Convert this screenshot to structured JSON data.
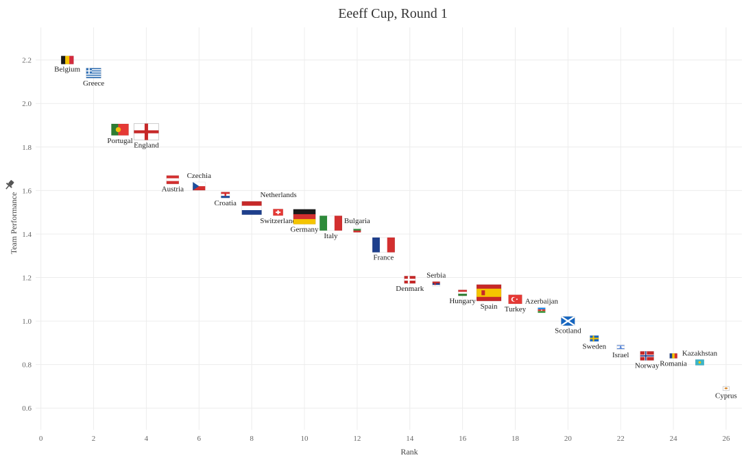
{
  "chart_data": {
    "type": "scatter",
    "title": "Eeeff Cup, Round 1",
    "xlabel": "Rank",
    "ylabel": "Team Performance",
    "xlim": [
      -0.2,
      26.6
    ],
    "ylim": [
      0.5,
      2.35
    ],
    "xticks": [
      0,
      2,
      4,
      6,
      8,
      10,
      12,
      14,
      16,
      18,
      20,
      22,
      24,
      26
    ],
    "yticks": [
      0.6,
      0.8,
      1.0,
      1.2,
      1.4,
      1.6,
      1.8,
      2.0,
      2.2
    ],
    "grid": true,
    "points": [
      {
        "team": "Belgium",
        "flag": "belgium",
        "x": 1,
        "y": 2.2,
        "size": 1.0,
        "label_pos": "bottom"
      },
      {
        "team": "Greece",
        "flag": "greece",
        "x": 2,
        "y": 2.14,
        "size": 1.2,
        "label_pos": "bottom"
      },
      {
        "team": "Portugal",
        "flag": "portugal",
        "x": 3,
        "y": 1.88,
        "size": 1.4,
        "label_pos": "bottom"
      },
      {
        "team": "England",
        "flag": "england",
        "x": 4,
        "y": 1.87,
        "size": 2.0,
        "label_pos": "bottom"
      },
      {
        "team": "Austria",
        "flag": "austria",
        "x": 5,
        "y": 1.65,
        "size": 1.0,
        "label_pos": "bottom"
      },
      {
        "team": "Czechia",
        "flag": "czechia",
        "x": 6,
        "y": 1.62,
        "size": 1.0,
        "label_pos": "top"
      },
      {
        "team": "Croatia",
        "flag": "croatia",
        "x": 7,
        "y": 1.58,
        "size": 0.7,
        "label_pos": "bottom"
      },
      {
        "team": "Netherlands",
        "flag": "netherlands",
        "x": 8,
        "y": 1.52,
        "size": 1.6,
        "label_pos": "top-right"
      },
      {
        "team": "Switzerland",
        "flag": "switzerland",
        "x": 9,
        "y": 1.5,
        "size": 0.8,
        "label_pos": "bottom"
      },
      {
        "team": "Germany",
        "flag": "germany",
        "x": 10,
        "y": 1.48,
        "size": 1.8,
        "label_pos": "bottom"
      },
      {
        "team": "Italy",
        "flag": "italy",
        "x": 11,
        "y": 1.45,
        "size": 1.8,
        "label_pos": "bottom"
      },
      {
        "team": "Bulgaria",
        "flag": "bulgaria",
        "x": 12,
        "y": 1.42,
        "size": 0.6,
        "label_pos": "top"
      },
      {
        "team": "France",
        "flag": "france",
        "x": 13,
        "y": 1.35,
        "size": 1.8,
        "label_pos": "bottom"
      },
      {
        "team": "Denmark",
        "flag": "denmark",
        "x": 14,
        "y": 1.19,
        "size": 0.9,
        "label_pos": "bottom"
      },
      {
        "team": "Serbia",
        "flag": "serbia",
        "x": 15,
        "y": 1.17,
        "size": 0.6,
        "label_pos": "top"
      },
      {
        "team": "Hungary",
        "flag": "hungary",
        "x": 16,
        "y": 1.13,
        "size": 0.7,
        "label_pos": "bottom"
      },
      {
        "team": "Spain",
        "flag": "spain",
        "x": 17,
        "y": 1.13,
        "size": 2.0,
        "label_pos": "bottom"
      },
      {
        "team": "Turkey",
        "flag": "turkey",
        "x": 18,
        "y": 1.1,
        "size": 1.1,
        "label_pos": "bottom"
      },
      {
        "team": "Azerbaijan",
        "flag": "azerbaijan",
        "x": 19,
        "y": 1.05,
        "size": 0.6,
        "label_pos": "top"
      },
      {
        "team": "Scotland",
        "flag": "scotland",
        "x": 20,
        "y": 1.0,
        "size": 1.1,
        "label_pos": "bottom"
      },
      {
        "team": "Sweden",
        "flag": "sweden",
        "x": 21,
        "y": 0.92,
        "size": 0.7,
        "label_pos": "bottom"
      },
      {
        "team": "Israel",
        "flag": "israel",
        "x": 22,
        "y": 0.88,
        "size": 0.6,
        "label_pos": "bottom"
      },
      {
        "team": "Norway",
        "flag": "norway",
        "x": 23,
        "y": 0.84,
        "size": 1.1,
        "label_pos": "bottom"
      },
      {
        "team": "Romania",
        "flag": "romania",
        "x": 24,
        "y": 0.84,
        "size": 0.6,
        "label_pos": "bottom"
      },
      {
        "team": "Kazakhstan",
        "flag": "kazakhstan",
        "x": 25,
        "y": 0.81,
        "size": 0.7,
        "label_pos": "top"
      },
      {
        "team": "Cyprus",
        "flag": "cyprus",
        "x": 26,
        "y": 0.69,
        "size": 0.5,
        "label_pos": "bottom"
      }
    ]
  },
  "toolbar": {
    "pin_icon": "pin-icon"
  }
}
